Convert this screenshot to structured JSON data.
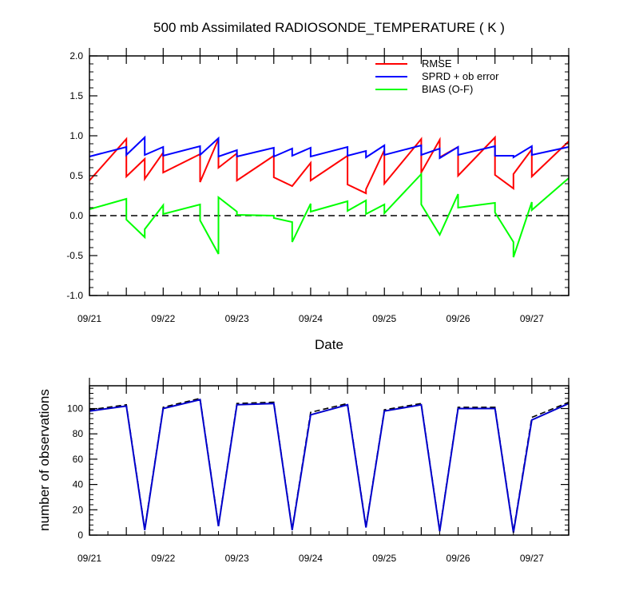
{
  "chart_data": [
    {
      "type": "line",
      "title": "500 mb Assimilated RADIOSONDE_TEMPERATURE ( K )",
      "xlabel": "Date",
      "ylabel": "",
      "x_tick_labels": [
        "09/21",
        "09/22",
        "09/23",
        "09/24",
        "09/25",
        "09/26",
        "09/27"
      ],
      "x_ticks_days": [
        0,
        1,
        2,
        3,
        4,
        5,
        6
      ],
      "xlim_days": [
        0,
        6.5
      ],
      "y_ticks": [
        -1.0,
        -0.5,
        0.0,
        0.5,
        1.0,
        1.5,
        2.0
      ],
      "y_tick_labels": [
        "-1.0",
        "-0.5",
        "0.0",
        "0.5",
        "1.0",
        "1.5",
        "2.0"
      ],
      "ylim": [
        -1.0,
        2.0
      ],
      "zero_line": true,
      "legend_position": "top-right",
      "series": [
        {
          "name": "RMSE",
          "color": "#ff0000",
          "points": [
            [
              0,
              0.44
            ],
            [
              0.5,
              0.96
            ],
            [
              0.5,
              0.49
            ],
            [
              0.75,
              0.71
            ],
            [
              0.75,
              0.46
            ],
            [
              1.0,
              0.79
            ],
            [
              1.0,
              0.54
            ],
            [
              1.5,
              0.77
            ],
            [
              1.5,
              0.42
            ],
            [
              1.75,
              0.96
            ],
            [
              1.75,
              0.6
            ],
            [
              2.0,
              0.78
            ],
            [
              2.0,
              0.44
            ],
            [
              2.5,
              0.75
            ],
            [
              2.5,
              0.48
            ],
            [
              2.75,
              0.37
            ],
            [
              3.0,
              0.66
            ],
            [
              3.0,
              0.44
            ],
            [
              3.5,
              0.75
            ],
            [
              3.5,
              0.39
            ],
            [
              3.75,
              0.28
            ],
            [
              3.75,
              0.33
            ],
            [
              4.0,
              0.82
            ],
            [
              4.0,
              0.4
            ],
            [
              4.5,
              0.96
            ],
            [
              4.5,
              0.54
            ],
            [
              4.75,
              0.95
            ],
            [
              4.75,
              0.73
            ],
            [
              5.0,
              0.86
            ],
            [
              5.0,
              0.5
            ],
            [
              5.5,
              0.98
            ],
            [
              5.5,
              0.51
            ],
            [
              5.75,
              0.34
            ],
            [
              5.75,
              0.52
            ],
            [
              6.0,
              0.83
            ],
            [
              6.0,
              0.49
            ],
            [
              6.5,
              0.93
            ]
          ]
        },
        {
          "name": "SPRD + ob error",
          "color": "#0000ff",
          "points": [
            [
              0,
              0.74
            ],
            [
              0.5,
              0.86
            ],
            [
              0.5,
              0.76
            ],
            [
              0.75,
              0.98
            ],
            [
              0.75,
              0.76
            ],
            [
              1.0,
              0.86
            ],
            [
              1.0,
              0.75
            ],
            [
              1.5,
              0.87
            ],
            [
              1.5,
              0.76
            ],
            [
              1.75,
              0.97
            ],
            [
              1.75,
              0.74
            ],
            [
              2.0,
              0.82
            ],
            [
              2.0,
              0.74
            ],
            [
              2.5,
              0.85
            ],
            [
              2.5,
              0.74
            ],
            [
              2.75,
              0.84
            ],
            [
              2.75,
              0.75
            ],
            [
              3.0,
              0.85
            ],
            [
              3.0,
              0.74
            ],
            [
              3.5,
              0.86
            ],
            [
              3.5,
              0.75
            ],
            [
              3.75,
              0.81
            ],
            [
              3.75,
              0.73
            ],
            [
              4.0,
              0.88
            ],
            [
              4.0,
              0.76
            ],
            [
              4.5,
              0.88
            ],
            [
              4.5,
              0.76
            ],
            [
              4.75,
              0.84
            ],
            [
              4.75,
              0.72
            ],
            [
              5.0,
              0.86
            ],
            [
              5.0,
              0.76
            ],
            [
              5.5,
              0.87
            ],
            [
              5.5,
              0.75
            ],
            [
              5.75,
              0.75
            ],
            [
              5.75,
              0.73
            ],
            [
              6.0,
              0.87
            ],
            [
              6.0,
              0.76
            ],
            [
              6.5,
              0.86
            ]
          ]
        },
        {
          "name": "BIAS (O-F)",
          "color": "#00ff00",
          "points": [
            [
              0,
              0.08
            ],
            [
              0.5,
              0.21
            ],
            [
              0.5,
              -0.05
            ],
            [
              0.75,
              -0.27
            ],
            [
              0.75,
              -0.17
            ],
            [
              1.0,
              0.13
            ],
            [
              1.0,
              0.02
            ],
            [
              1.5,
              0.14
            ],
            [
              1.5,
              -0.06
            ],
            [
              1.75,
              -0.48
            ],
            [
              1.75,
              0.23
            ],
            [
              2.0,
              0.05
            ],
            [
              2.0,
              0.01
            ],
            [
              2.5,
              0.0
            ],
            [
              2.5,
              -0.03
            ],
            [
              2.75,
              -0.08
            ],
            [
              2.75,
              -0.33
            ],
            [
              3.0,
              0.15
            ],
            [
              3.0,
              0.05
            ],
            [
              3.5,
              0.18
            ],
            [
              3.5,
              0.06
            ],
            [
              3.75,
              0.19
            ],
            [
              3.75,
              0.02
            ],
            [
              4.0,
              0.14
            ],
            [
              4.0,
              0.03
            ],
            [
              4.5,
              0.52
            ],
            [
              4.5,
              0.14
            ],
            [
              4.75,
              -0.24
            ],
            [
              5.0,
              0.27
            ],
            [
              5.0,
              0.1
            ],
            [
              5.5,
              0.16
            ],
            [
              5.5,
              0.04
            ],
            [
              5.75,
              -0.33
            ],
            [
              5.75,
              -0.52
            ],
            [
              6.0,
              0.17
            ],
            [
              6.0,
              0.07
            ],
            [
              6.5,
              0.47
            ]
          ]
        }
      ]
    },
    {
      "type": "line",
      "title": "",
      "xlabel": "",
      "ylabel": "number of observations",
      "x_tick_labels": [
        "09/21",
        "09/22",
        "09/23",
        "09/24",
        "09/25",
        "09/26",
        "09/27"
      ],
      "x_ticks_days": [
        0,
        1,
        2,
        3,
        4,
        5,
        6
      ],
      "xlim_days": [
        0,
        6.5
      ],
      "y_ticks": [
        0,
        20,
        40,
        60,
        80,
        100
      ],
      "y_tick_labels": [
        "0",
        "20",
        "40",
        "60",
        "80",
        "100"
      ],
      "ylim": [
        0,
        118
      ],
      "series": [
        {
          "style": "dashed",
          "color": "#000000",
          "points": [
            [
              0,
              99
            ],
            [
              0.5,
              103
            ],
            [
              0.75,
              5
            ],
            [
              1.0,
              101
            ],
            [
              1.5,
              108
            ],
            [
              1.75,
              8
            ],
            [
              2.0,
              104
            ],
            [
              2.5,
              105
            ],
            [
              2.75,
              5
            ],
            [
              3.0,
              97
            ],
            [
              3.5,
              104
            ],
            [
              3.75,
              7
            ],
            [
              4.0,
              99
            ],
            [
              4.5,
              104
            ],
            [
              4.75,
              4
            ],
            [
              5.0,
              101
            ],
            [
              5.5,
              101
            ],
            [
              5.75,
              3
            ],
            [
              6.0,
              93
            ],
            [
              6.5,
              105
            ]
          ]
        },
        {
          "style": "solid",
          "color": "#0000cc",
          "points": [
            [
              0,
              98
            ],
            [
              0.5,
              102
            ],
            [
              0.75,
              4
            ],
            [
              1.0,
              100
            ],
            [
              1.5,
              107
            ],
            [
              1.75,
              7
            ],
            [
              2.0,
              103
            ],
            [
              2.5,
              104
            ],
            [
              2.75,
              4
            ],
            [
              3.0,
              95
            ],
            [
              3.5,
              103
            ],
            [
              3.75,
              6
            ],
            [
              4.0,
              98
            ],
            [
              4.5,
              103
            ],
            [
              4.75,
              3
            ],
            [
              5.0,
              100
            ],
            [
              5.5,
              100
            ],
            [
              5.75,
              2
            ],
            [
              6.0,
              91
            ],
            [
              6.5,
              104
            ]
          ]
        }
      ]
    }
  ]
}
